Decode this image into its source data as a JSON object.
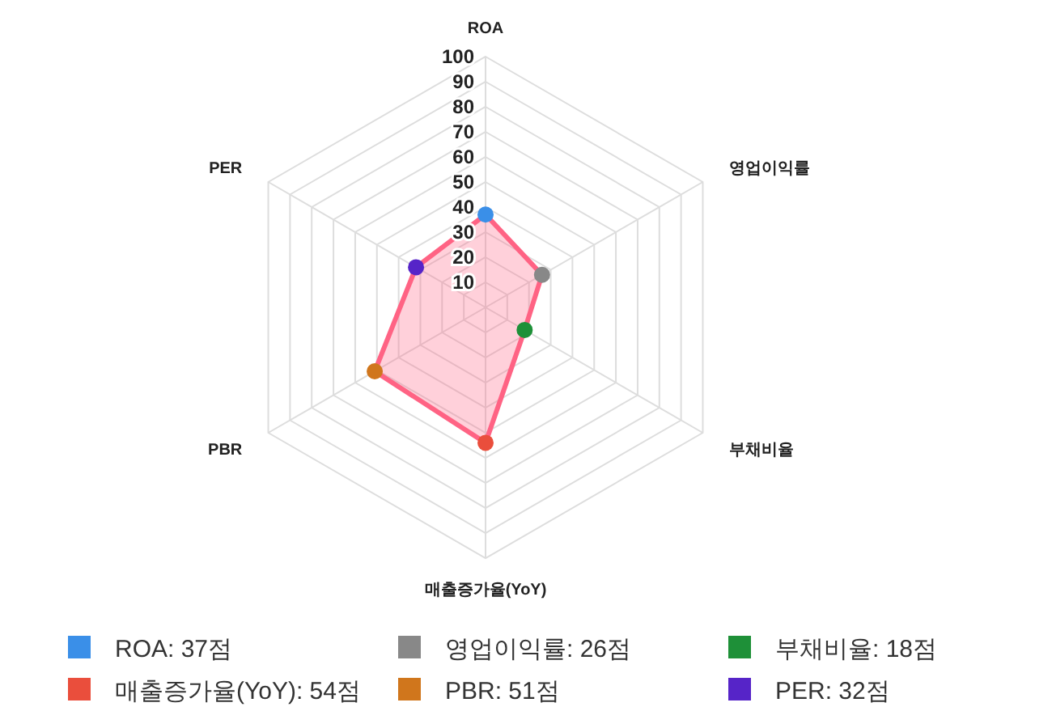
{
  "chart_data": {
    "type": "radar",
    "categories": [
      "ROA",
      "영업이익률",
      "부채비율",
      "매출증가율(YoY)",
      "PBR",
      "PER"
    ],
    "ylim": [
      0,
      100
    ],
    "yticks": [
      10,
      20,
      30,
      40,
      50,
      60,
      70,
      80,
      90,
      100
    ],
    "grid": true,
    "marker": "circle",
    "series": [
      {
        "color": "#ff6384",
        "values": [
          37,
          26,
          18,
          54,
          51,
          32
        ],
        "colors": [
          "#3a8fe8",
          "#888888",
          "#1e9038",
          "#ea4e3c",
          "#d0761c",
          "#5624c8"
        ]
      }
    ],
    "annotations": [
      "ROA: 37점",
      "영업이익률: 26점",
      "부채비율: 18점",
      "매출증가율(YoY): 54점",
      "PBR: 51점",
      "PER: 32점"
    ]
  }
}
